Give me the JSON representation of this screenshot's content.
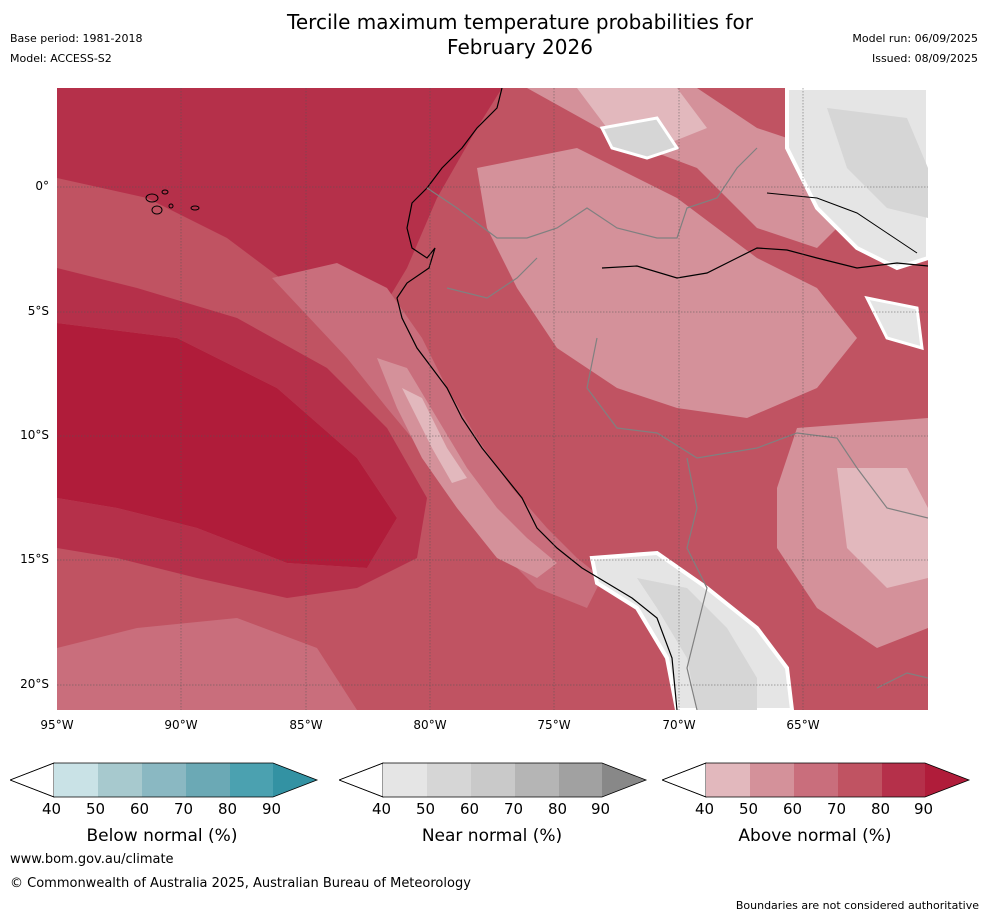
{
  "title_line1": "Tercile maximum temperature probabilities for",
  "title_line2": "February 2026",
  "meta_left": {
    "base_period": "Base period: 1981-2018",
    "model": "Model: ACCESS-S2"
  },
  "meta_right": {
    "model_run": "Model run: 06/09/2025",
    "issued": "Issued: 08/09/2025"
  },
  "lat_labels": [
    "0°",
    "5°S",
    "10°S",
    "15°S",
    "20°S"
  ],
  "lon_labels": [
    "95°W",
    "90°W",
    "85°W",
    "80°W",
    "75°W",
    "70°W",
    "65°W"
  ],
  "colorbars": [
    {
      "title": "Below normal (%)",
      "ticks": [
        "40",
        "50",
        "60",
        "70",
        "80",
        "90"
      ],
      "colors": [
        "#c9e2e6",
        "#a7c9ce",
        "#8ab8c2",
        "#6ba9b5",
        "#4ba1b0"
      ],
      "extend_color": "#3392a3"
    },
    {
      "title": "Near normal (%)",
      "ticks": [
        "40",
        "50",
        "60",
        "70",
        "80",
        "90"
      ],
      "colors": [
        "#e5e5e5",
        "#d6d6d6",
        "#c9c9c9",
        "#b5b5b5",
        "#a1a1a1"
      ],
      "extend_color": "#888888"
    },
    {
      "title": "Above normal (%)",
      "ticks": [
        "40",
        "50",
        "60",
        "70",
        "80",
        "90"
      ],
      "colors": [
        "#e2b8bd",
        "#d4919a",
        "#c96e7c",
        "#c05362",
        "#b5304a"
      ],
      "extend_color": "#b01c3a"
    }
  ],
  "footer": {
    "url": "www.bom.gov.au/climate",
    "copyright": "© Commonwealth of Australia 2025, Australian Bureau of Meteorology",
    "disclaimer": "Boundaries are not considered authoritative"
  }
}
